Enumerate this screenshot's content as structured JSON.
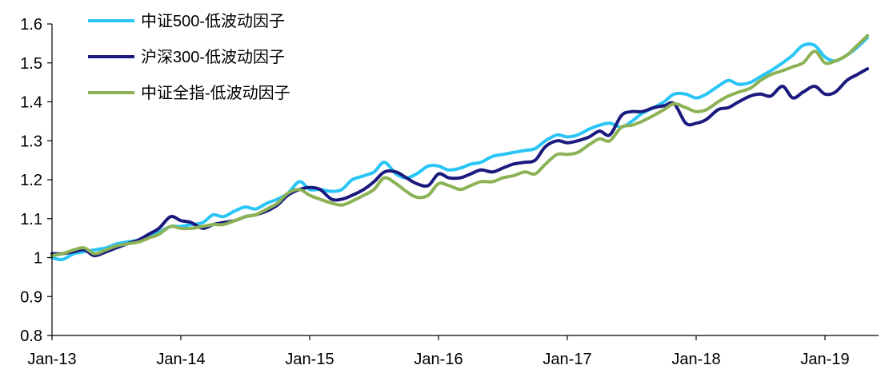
{
  "chart_data": {
    "type": "line",
    "title": "",
    "xlabel": "",
    "ylabel": "",
    "ylim": [
      0.8,
      1.6
    ],
    "yticks": [
      "0.8",
      "0.9",
      "1",
      "1.1",
      "1.2",
      "1.3",
      "1.4",
      "1.5",
      "1.6"
    ],
    "xticks": [
      "Jan-13",
      "Jan-14",
      "Jan-15",
      "Jan-16",
      "Jan-17",
      "Jan-18",
      "Jan-19"
    ],
    "grid": false,
    "legend_position": "top-left",
    "series": [
      {
        "name": "中证500-低波动因子",
        "color": "#29C5F6",
        "points": [
          [
            2013.0,
            1.0
          ],
          [
            2013.08,
            0.995
          ],
          [
            2013.17,
            1.01
          ],
          [
            2013.25,
            1.015
          ],
          [
            2013.33,
            1.02
          ],
          [
            2013.42,
            1.025
          ],
          [
            2013.5,
            1.035
          ],
          [
            2013.58,
            1.04
          ],
          [
            2013.67,
            1.045
          ],
          [
            2013.75,
            1.055
          ],
          [
            2013.83,
            1.065
          ],
          [
            2013.92,
            1.08
          ],
          [
            2014.0,
            1.08
          ],
          [
            2014.08,
            1.085
          ],
          [
            2014.17,
            1.09
          ],
          [
            2014.25,
            1.11
          ],
          [
            2014.33,
            1.105
          ],
          [
            2014.42,
            1.12
          ],
          [
            2014.5,
            1.13
          ],
          [
            2014.58,
            1.125
          ],
          [
            2014.67,
            1.14
          ],
          [
            2014.75,
            1.15
          ],
          [
            2014.83,
            1.165
          ],
          [
            2014.92,
            1.195
          ],
          [
            2015.0,
            1.175
          ],
          [
            2015.08,
            1.175
          ],
          [
            2015.17,
            1.17
          ],
          [
            2015.25,
            1.175
          ],
          [
            2015.33,
            1.2
          ],
          [
            2015.42,
            1.21
          ],
          [
            2015.5,
            1.22
          ],
          [
            2015.58,
            1.245
          ],
          [
            2015.67,
            1.215
          ],
          [
            2015.75,
            1.205
          ],
          [
            2015.83,
            1.215
          ],
          [
            2015.92,
            1.235
          ],
          [
            2016.0,
            1.235
          ],
          [
            2016.08,
            1.225
          ],
          [
            2016.17,
            1.23
          ],
          [
            2016.25,
            1.24
          ],
          [
            2016.33,
            1.245
          ],
          [
            2016.42,
            1.26
          ],
          [
            2016.5,
            1.265
          ],
          [
            2016.58,
            1.27
          ],
          [
            2016.67,
            1.275
          ],
          [
            2016.75,
            1.28
          ],
          [
            2016.83,
            1.3
          ],
          [
            2016.92,
            1.315
          ],
          [
            2017.0,
            1.31
          ],
          [
            2017.08,
            1.315
          ],
          [
            2017.17,
            1.33
          ],
          [
            2017.25,
            1.34
          ],
          [
            2017.33,
            1.345
          ],
          [
            2017.42,
            1.335
          ],
          [
            2017.5,
            1.35
          ],
          [
            2017.58,
            1.37
          ],
          [
            2017.67,
            1.385
          ],
          [
            2017.75,
            1.4
          ],
          [
            2017.83,
            1.42
          ],
          [
            2017.92,
            1.42
          ],
          [
            2018.0,
            1.41
          ],
          [
            2018.08,
            1.42
          ],
          [
            2018.17,
            1.44
          ],
          [
            2018.25,
            1.455
          ],
          [
            2018.33,
            1.445
          ],
          [
            2018.42,
            1.45
          ],
          [
            2018.5,
            1.465
          ],
          [
            2018.58,
            1.48
          ],
          [
            2018.67,
            1.5
          ],
          [
            2018.75,
            1.52
          ],
          [
            2018.83,
            1.545
          ],
          [
            2018.92,
            1.545
          ],
          [
            2019.0,
            1.515
          ],
          [
            2019.08,
            1.505
          ],
          [
            2019.17,
            1.52
          ],
          [
            2019.25,
            1.54
          ],
          [
            2019.33,
            1.565
          ]
        ]
      },
      {
        "name": "沪深300-低波动因子",
        "color": "#1A1A7E",
        "points": [
          [
            2013.0,
            1.01
          ],
          [
            2013.08,
            1.01
          ],
          [
            2013.17,
            1.015
          ],
          [
            2013.25,
            1.02
          ],
          [
            2013.33,
            1.005
          ],
          [
            2013.42,
            1.015
          ],
          [
            2013.5,
            1.025
          ],
          [
            2013.58,
            1.035
          ],
          [
            2013.67,
            1.045
          ],
          [
            2013.75,
            1.06
          ],
          [
            2013.83,
            1.075
          ],
          [
            2013.92,
            1.105
          ],
          [
            2014.0,
            1.095
          ],
          [
            2014.08,
            1.09
          ],
          [
            2014.17,
            1.075
          ],
          [
            2014.25,
            1.085
          ],
          [
            2014.33,
            1.09
          ],
          [
            2014.42,
            1.095
          ],
          [
            2014.5,
            1.105
          ],
          [
            2014.58,
            1.11
          ],
          [
            2014.67,
            1.12
          ],
          [
            2014.75,
            1.135
          ],
          [
            2014.83,
            1.16
          ],
          [
            2014.92,
            1.175
          ],
          [
            2015.0,
            1.18
          ],
          [
            2015.08,
            1.175
          ],
          [
            2015.17,
            1.15
          ],
          [
            2015.25,
            1.15
          ],
          [
            2015.33,
            1.16
          ],
          [
            2015.42,
            1.175
          ],
          [
            2015.5,
            1.195
          ],
          [
            2015.58,
            1.22
          ],
          [
            2015.67,
            1.22
          ],
          [
            2015.75,
            1.205
          ],
          [
            2015.83,
            1.19
          ],
          [
            2015.92,
            1.185
          ],
          [
            2016.0,
            1.215
          ],
          [
            2016.08,
            1.205
          ],
          [
            2016.17,
            1.205
          ],
          [
            2016.25,
            1.215
          ],
          [
            2016.33,
            1.225
          ],
          [
            2016.42,
            1.22
          ],
          [
            2016.5,
            1.23
          ],
          [
            2016.58,
            1.24
          ],
          [
            2016.67,
            1.245
          ],
          [
            2016.75,
            1.25
          ],
          [
            2016.83,
            1.285
          ],
          [
            2016.92,
            1.3
          ],
          [
            2017.0,
            1.295
          ],
          [
            2017.08,
            1.3
          ],
          [
            2017.17,
            1.31
          ],
          [
            2017.25,
            1.325
          ],
          [
            2017.33,
            1.315
          ],
          [
            2017.42,
            1.365
          ],
          [
            2017.5,
            1.375
          ],
          [
            2017.58,
            1.375
          ],
          [
            2017.67,
            1.385
          ],
          [
            2017.75,
            1.39
          ],
          [
            2017.83,
            1.395
          ],
          [
            2017.92,
            1.345
          ],
          [
            2018.0,
            1.345
          ],
          [
            2018.08,
            1.355
          ],
          [
            2018.17,
            1.38
          ],
          [
            2018.25,
            1.385
          ],
          [
            2018.33,
            1.4
          ],
          [
            2018.42,
            1.415
          ],
          [
            2018.5,
            1.42
          ],
          [
            2018.58,
            1.415
          ],
          [
            2018.67,
            1.44
          ],
          [
            2018.75,
            1.41
          ],
          [
            2018.83,
            1.425
          ],
          [
            2018.92,
            1.44
          ],
          [
            2019.0,
            1.42
          ],
          [
            2019.08,
            1.425
          ],
          [
            2019.17,
            1.455
          ],
          [
            2019.25,
            1.47
          ],
          [
            2019.33,
            1.485
          ]
        ]
      },
      {
        "name": "中证全指-低波动因子",
        "color": "#8CB255",
        "points": [
          [
            2013.0,
            1.005
          ],
          [
            2013.08,
            1.01
          ],
          [
            2013.17,
            1.02
          ],
          [
            2013.25,
            1.025
          ],
          [
            2013.33,
            1.01
          ],
          [
            2013.42,
            1.02
          ],
          [
            2013.5,
            1.03
          ],
          [
            2013.58,
            1.035
          ],
          [
            2013.67,
            1.04
          ],
          [
            2013.75,
            1.05
          ],
          [
            2013.83,
            1.06
          ],
          [
            2013.92,
            1.08
          ],
          [
            2014.0,
            1.075
          ],
          [
            2014.08,
            1.075
          ],
          [
            2014.17,
            1.08
          ],
          [
            2014.25,
            1.085
          ],
          [
            2014.33,
            1.085
          ],
          [
            2014.42,
            1.095
          ],
          [
            2014.5,
            1.105
          ],
          [
            2014.58,
            1.11
          ],
          [
            2014.67,
            1.125
          ],
          [
            2014.75,
            1.14
          ],
          [
            2014.83,
            1.165
          ],
          [
            2014.92,
            1.175
          ],
          [
            2015.0,
            1.16
          ],
          [
            2015.08,
            1.15
          ],
          [
            2015.17,
            1.14
          ],
          [
            2015.25,
            1.135
          ],
          [
            2015.33,
            1.145
          ],
          [
            2015.42,
            1.16
          ],
          [
            2015.5,
            1.175
          ],
          [
            2015.58,
            1.205
          ],
          [
            2015.67,
            1.19
          ],
          [
            2015.75,
            1.17
          ],
          [
            2015.83,
            1.155
          ],
          [
            2015.92,
            1.16
          ],
          [
            2016.0,
            1.19
          ],
          [
            2016.08,
            1.185
          ],
          [
            2016.17,
            1.175
          ],
          [
            2016.25,
            1.185
          ],
          [
            2016.33,
            1.195
          ],
          [
            2016.42,
            1.195
          ],
          [
            2016.5,
            1.205
          ],
          [
            2016.58,
            1.21
          ],
          [
            2016.67,
            1.22
          ],
          [
            2016.75,
            1.215
          ],
          [
            2016.83,
            1.24
          ],
          [
            2016.92,
            1.265
          ],
          [
            2017.0,
            1.265
          ],
          [
            2017.08,
            1.27
          ],
          [
            2017.17,
            1.29
          ],
          [
            2017.25,
            1.305
          ],
          [
            2017.33,
            1.3
          ],
          [
            2017.42,
            1.335
          ],
          [
            2017.5,
            1.34
          ],
          [
            2017.58,
            1.35
          ],
          [
            2017.67,
            1.365
          ],
          [
            2017.75,
            1.38
          ],
          [
            2017.83,
            1.395
          ],
          [
            2017.92,
            1.385
          ],
          [
            2018.0,
            1.375
          ],
          [
            2018.08,
            1.38
          ],
          [
            2018.17,
            1.4
          ],
          [
            2018.25,
            1.415
          ],
          [
            2018.33,
            1.425
          ],
          [
            2018.42,
            1.435
          ],
          [
            2018.5,
            1.455
          ],
          [
            2018.58,
            1.47
          ],
          [
            2018.67,
            1.48
          ],
          [
            2018.75,
            1.49
          ],
          [
            2018.83,
            1.5
          ],
          [
            2018.92,
            1.53
          ],
          [
            2019.0,
            1.5
          ],
          [
            2019.08,
            1.505
          ],
          [
            2019.17,
            1.52
          ],
          [
            2019.25,
            1.545
          ],
          [
            2019.33,
            1.57
          ]
        ]
      }
    ]
  }
}
